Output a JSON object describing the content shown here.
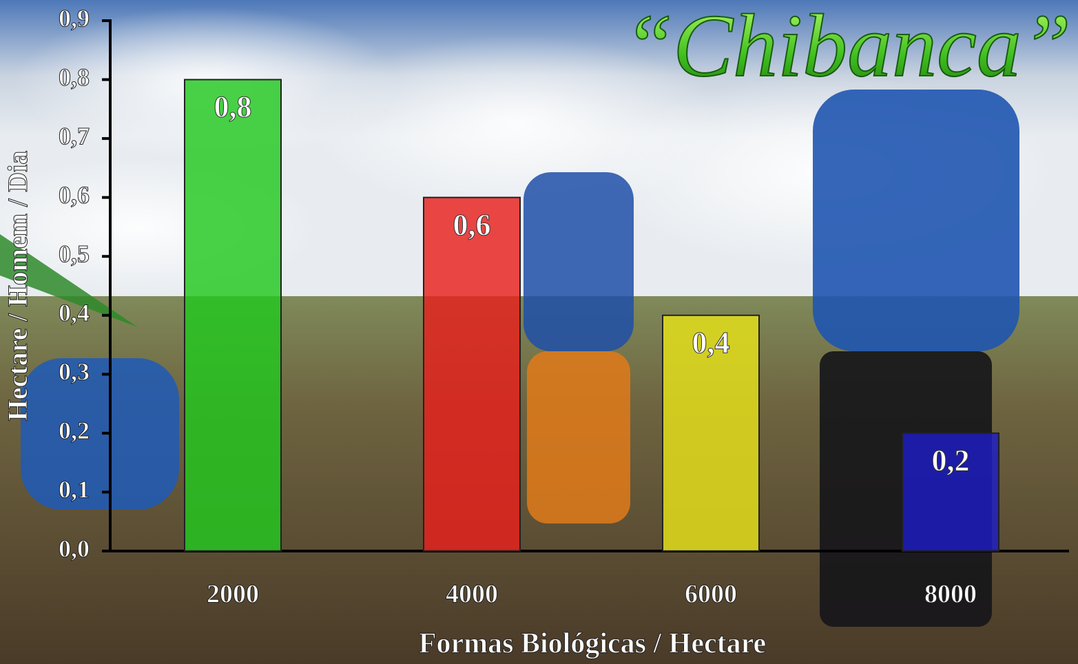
{
  "chart_data": {
    "type": "bar",
    "title": "“Chibanca”",
    "x_label": "Formas Biológicas / Hectare",
    "y_label": "Hectare / Homem / Dia",
    "categories": [
      "2000",
      "4000",
      "6000",
      "8000"
    ],
    "values": [
      0.8,
      0.6,
      0.4,
      0.2
    ],
    "value_labels": [
      "0,8",
      "0,6",
      "0,4",
      "0,2"
    ],
    "colors": [
      "#22c81e",
      "#e8201c",
      "#e6e21a",
      "#1c1cc4"
    ],
    "ylim": [
      0,
      0.9
    ],
    "yticks": [
      {
        "value": 0,
        "label": "0,0"
      },
      {
        "value": 0.1,
        "label": "0,1"
      },
      {
        "value": 0.2,
        "label": "0,2"
      },
      {
        "value": 0.3,
        "label": "0,3"
      },
      {
        "value": 0.4,
        "label": "0,4"
      },
      {
        "value": 0.5,
        "label": "0,5"
      },
      {
        "value": 0.6,
        "label": "0,6"
      },
      {
        "value": 0.7,
        "label": "0,7"
      },
      {
        "value": 0.8,
        "label": "0,8"
      },
      {
        "value": 0.9,
        "label": "0,9"
      }
    ]
  }
}
